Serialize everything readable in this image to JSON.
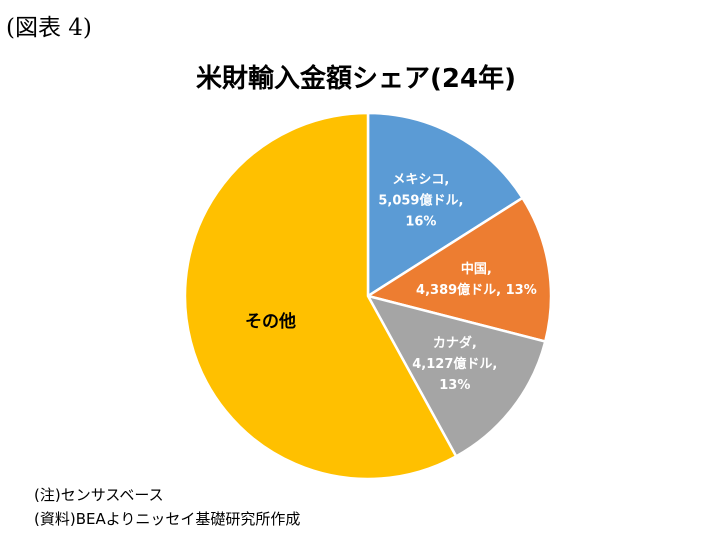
{
  "figure_label": "(図表 4)",
  "chart_data": {
    "type": "pie",
    "title": "米財輸入金額シェア(24年)",
    "slices": [
      {
        "label": [
          "メキシコ,",
          "5,059億ドル,",
          "16%"
        ],
        "value": 16,
        "color": "#5b9bd5",
        "text_color": "#ffffff"
      },
      {
        "label": [
          "中国,",
          "4,389億ドル, 13%"
        ],
        "value": 13,
        "color": "#ed7d31",
        "text_color": "#ffffff"
      },
      {
        "label": [
          "カナダ,",
          "4,127億ドル,",
          "13%"
        ],
        "value": 13,
        "color": "#a5a5a5",
        "text_color": "#ffffff"
      },
      {
        "label": [
          "その他"
        ],
        "value": 58,
        "color": "#ffc000",
        "text_color": "#000000"
      }
    ]
  },
  "notes": {
    "note1": "(注)センサスベース",
    "note2": "(資料)BEAよりニッセイ基礎研究所作成"
  }
}
